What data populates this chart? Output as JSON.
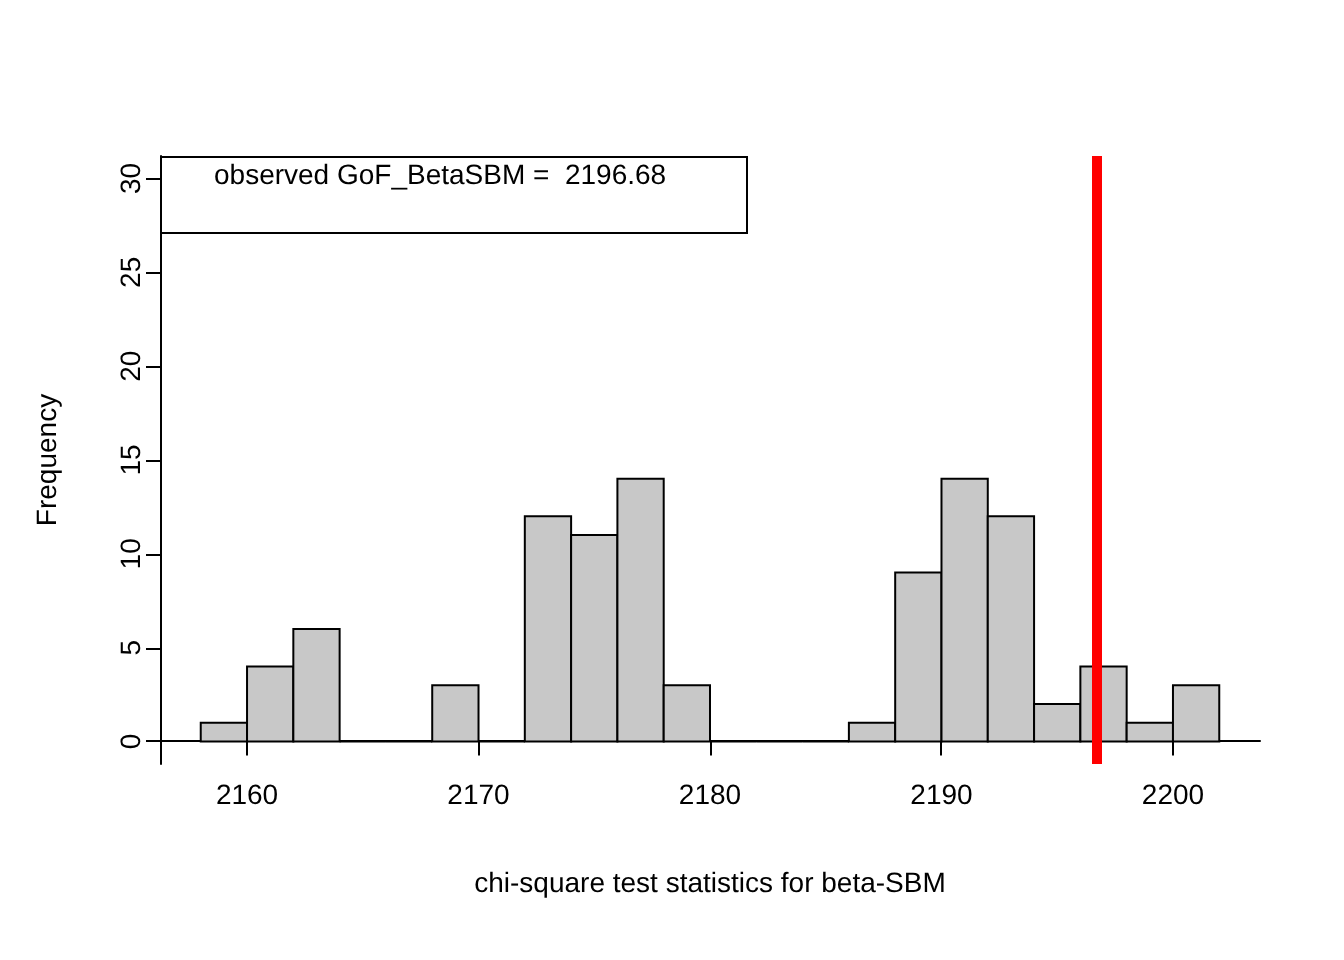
{
  "chart_data": {
    "type": "histogram",
    "xlabel": "chi-square test statistics for beta-SBM",
    "ylabel": "Frequency",
    "bins": [
      2158,
      2160,
      2162,
      2164,
      2166,
      2168,
      2170,
      2172,
      2174,
      2176,
      2178,
      2180,
      2182,
      2184,
      2186,
      2188,
      2190,
      2192,
      2194,
      2196,
      2198,
      2200,
      2202
    ],
    "values": [
      1,
      4,
      6,
      0,
      0,
      3,
      0,
      12,
      11,
      14,
      3,
      0,
      0,
      0,
      1,
      9,
      14,
      12,
      2,
      4,
      1,
      3
    ],
    "color": "#c8c8c8",
    "xlim": [
      2156.24,
      2203.76
    ],
    "xticks": [
      2160,
      2170,
      2180,
      2190,
      2200
    ],
    "ylim": [
      -1.2,
      31.2
    ],
    "yticks": [
      0,
      5,
      10,
      15,
      20,
      25,
      30
    ],
    "ref_lines": [
      {
        "axis": "x",
        "value": 2196.68,
        "color": "#ff0000"
      }
    ],
    "annotations": [
      "observed GoF_BetaSBM =  2196.68"
    ],
    "grid": false
  }
}
